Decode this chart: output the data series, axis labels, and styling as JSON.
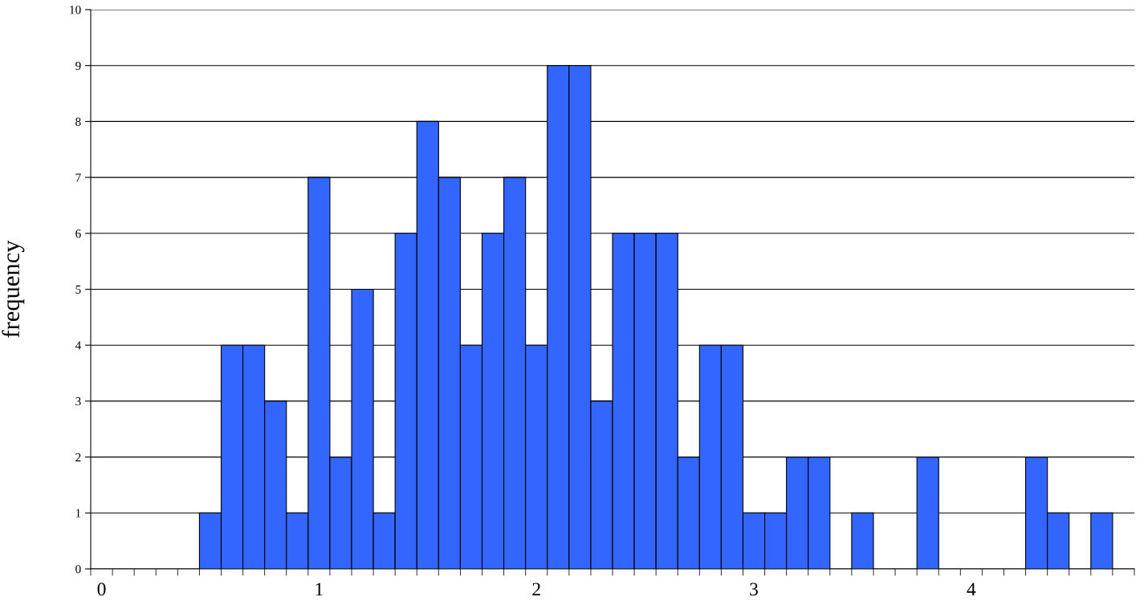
{
  "chart_data": {
    "type": "bar",
    "ylabel": "frequency",
    "categories": [
      "0",
      null,
      null,
      null,
      null,
      null,
      null,
      null,
      null,
      null,
      "1",
      null,
      null,
      null,
      null,
      null,
      null,
      null,
      null,
      null,
      "2",
      null,
      null,
      null,
      null,
      null,
      null,
      null,
      null,
      null,
      "3",
      null,
      null,
      null,
      null,
      null,
      null,
      null,
      null,
      null,
      "4",
      null,
      null,
      null,
      null,
      null,
      null,
      null
    ],
    "values": [
      0,
      0,
      0,
      0,
      0,
      1,
      4,
      4,
      3,
      1,
      7,
      2,
      5,
      1,
      6,
      8,
      7,
      4,
      6,
      7,
      4,
      9,
      9,
      3,
      6,
      6,
      6,
      2,
      4,
      4,
      1,
      1,
      2,
      2,
      0,
      1,
      0,
      0,
      2,
      0,
      0,
      0,
      0,
      2,
      1,
      0,
      1,
      0
    ],
    "color": "#3366ff",
    "ylim": [
      0,
      10
    ],
    "yticks": [
      0,
      1,
      2,
      3,
      4,
      5,
      6,
      7,
      8,
      9,
      10
    ],
    "grid": "y",
    "legend": false
  }
}
